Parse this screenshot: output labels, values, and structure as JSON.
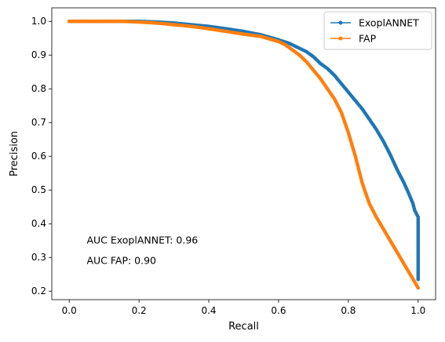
{
  "chart_data": {
    "type": "line",
    "title": "",
    "xlabel": "Recall",
    "ylabel": "Precision",
    "xlim": [
      -0.05,
      1.05
    ],
    "ylim": [
      0.175,
      1.04
    ],
    "xticks": [
      0.0,
      0.2,
      0.4,
      0.6,
      0.8,
      1.0
    ],
    "xtick_labels": [
      "0.0",
      "0.2",
      "0.4",
      "0.6",
      "0.8",
      "1.0"
    ],
    "yticks": [
      0.2,
      0.3,
      0.4,
      0.5,
      0.6,
      0.7,
      0.8,
      0.9,
      1.0
    ],
    "ytick_labels": [
      "0.2",
      "0.3",
      "0.4",
      "0.5",
      "0.6",
      "0.7",
      "0.8",
      "0.9",
      "1.0"
    ],
    "grid": false,
    "legend_position": "top-right",
    "series": [
      {
        "name": "ExoplANNET",
        "color": "#1f77b4",
        "marker": "circle",
        "x": [
          0.0,
          0.05,
          0.1,
          0.15,
          0.2,
          0.25,
          0.3,
          0.35,
          0.4,
          0.45,
          0.5,
          0.55,
          0.6,
          0.63,
          0.66,
          0.68,
          0.7,
          0.72,
          0.74,
          0.76,
          0.78,
          0.8,
          0.82,
          0.84,
          0.86,
          0.88,
          0.9,
          0.92,
          0.94,
          0.96,
          0.975,
          0.985,
          0.99,
          0.995,
          1.0,
          1.0,
          1.0,
          1.0,
          1.0,
          1.0
        ],
        "y": [
          1.0,
          1.0,
          1.0,
          1.0,
          1.0,
          0.998,
          0.995,
          0.99,
          0.985,
          0.978,
          0.97,
          0.96,
          0.945,
          0.935,
          0.92,
          0.91,
          0.895,
          0.875,
          0.86,
          0.84,
          0.815,
          0.79,
          0.765,
          0.74,
          0.71,
          0.68,
          0.645,
          0.605,
          0.56,
          0.52,
          0.485,
          0.46,
          0.44,
          0.43,
          0.42,
          0.38,
          0.33,
          0.3,
          0.26,
          0.235
        ]
      },
      {
        "name": "FAP",
        "color": "#ff7f0e",
        "marker": "circle",
        "x": [
          0.0,
          0.05,
          0.1,
          0.15,
          0.2,
          0.25,
          0.3,
          0.35,
          0.4,
          0.45,
          0.5,
          0.55,
          0.6,
          0.62,
          0.64,
          0.66,
          0.68,
          0.7,
          0.72,
          0.74,
          0.76,
          0.78,
          0.8,
          0.82,
          0.83,
          0.84,
          0.85,
          0.86,
          0.87,
          0.88,
          0.9,
          0.92,
          0.94,
          0.96,
          0.98,
          1.0
        ],
        "y": [
          1.0,
          1.0,
          1.0,
          1.0,
          0.998,
          0.995,
          0.99,
          0.985,
          0.978,
          0.97,
          0.962,
          0.955,
          0.94,
          0.93,
          0.915,
          0.9,
          0.88,
          0.855,
          0.83,
          0.8,
          0.77,
          0.73,
          0.67,
          0.6,
          0.56,
          0.52,
          0.49,
          0.46,
          0.44,
          0.42,
          0.385,
          0.35,
          0.315,
          0.28,
          0.245,
          0.21
        ]
      }
    ],
    "annotations": [
      {
        "text": "AUC ExoplANNET: 0.96",
        "x": 0.05,
        "y": 0.35
      },
      {
        "text": "AUC FAP: 0.90",
        "x": 0.05,
        "y": 0.29
      }
    ]
  }
}
